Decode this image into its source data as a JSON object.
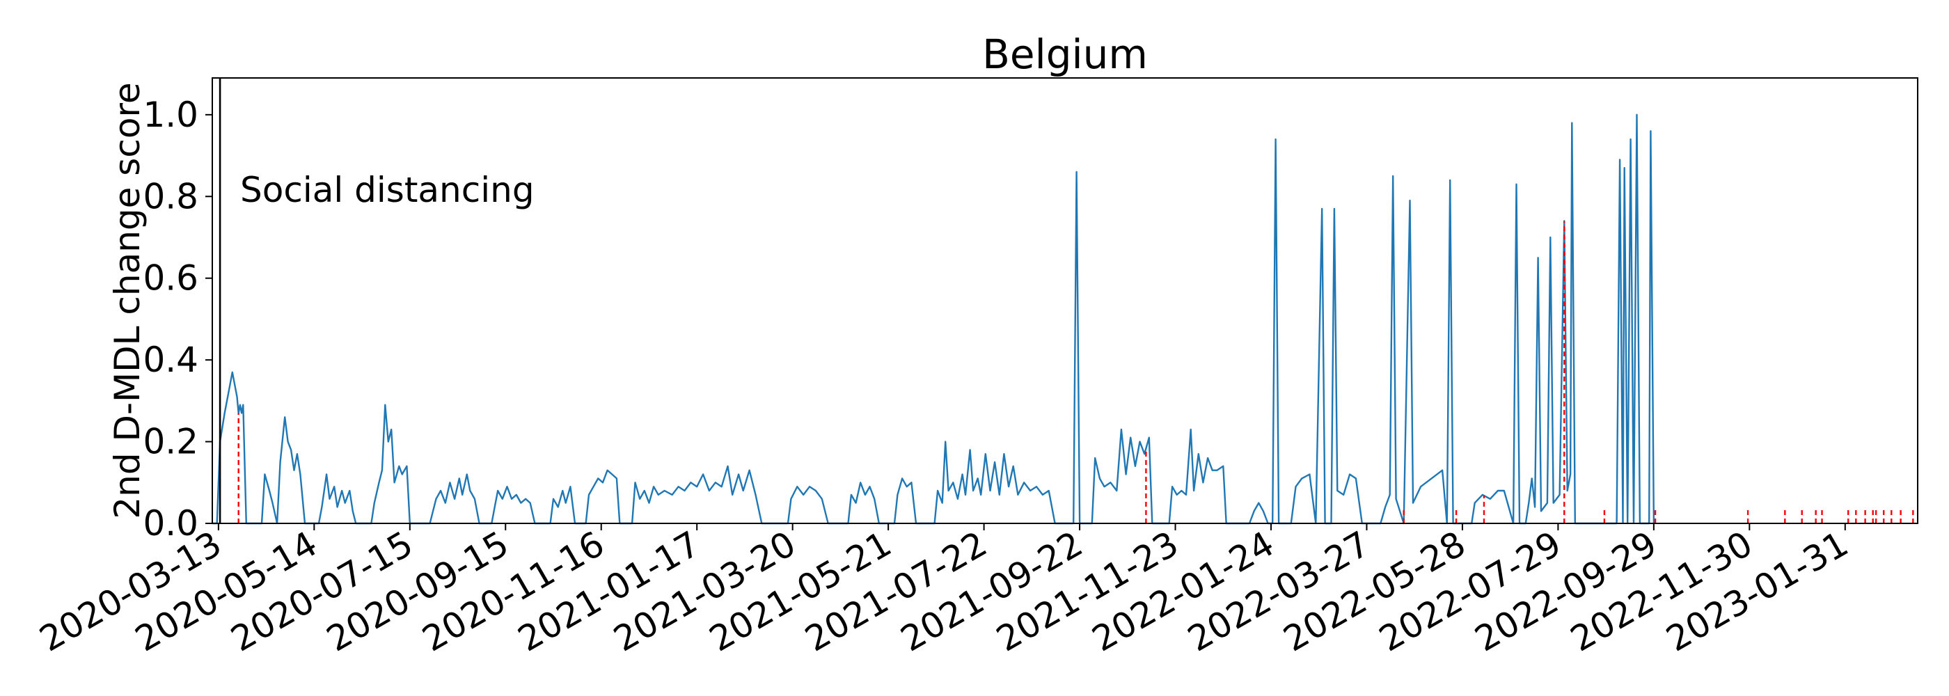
{
  "chart_data": {
    "type": "line",
    "title": "Belgium",
    "xlabel": "",
    "ylabel": "2nd D-MDL change score",
    "x_tick_labels": [
      "2020-03-13",
      "2020-05-14",
      "2020-07-15",
      "2020-09-15",
      "2020-11-16",
      "2021-01-17",
      "2021-03-20",
      "2021-05-21",
      "2021-07-22",
      "2021-09-22",
      "2021-11-23",
      "2022-01-24",
      "2022-03-27",
      "2022-05-28",
      "2022-07-29",
      "2022-09-29",
      "2022-11-30",
      "2023-01-31"
    ],
    "y_ticks": [
      0.0,
      0.2,
      0.4,
      0.6,
      0.8,
      1.0
    ],
    "y_tick_labels": [
      "0.0",
      "0.2",
      "0.4",
      "0.6",
      "0.8",
      "1.0"
    ],
    "xlim": [
      "2020-03-09",
      "2023-03-19"
    ],
    "ylim": [
      0.0,
      1.09
    ],
    "grid": false,
    "line_color": "#1f77b4",
    "event_line_color": "#000000",
    "change_point_color": "#ff0000",
    "event": {
      "date": "2020-03-14",
      "label": "Social distancing"
    },
    "change_points": [
      "2020-03-26",
      "2021-11-04",
      "2022-04-20",
      "2022-05-24",
      "2022-06-11",
      "2022-08-02",
      "2022-08-28",
      "2022-09-30",
      "2022-11-29",
      "2022-12-23",
      "2023-01-03",
      "2023-01-12",
      "2023-01-16",
      "2023-02-02",
      "2023-02-07",
      "2023-02-13",
      "2023-02-18",
      "2023-02-20",
      "2023-02-25",
      "2023-03-02",
      "2023-03-08",
      "2023-03-16"
    ],
    "series": [
      {
        "values": [
          [
            "2020-03-09",
            0.0
          ],
          [
            "2020-03-12",
            0.0
          ],
          [
            "2020-03-14",
            0.2
          ],
          [
            "2020-03-17",
            0.27
          ],
          [
            "2020-03-20",
            0.33
          ],
          [
            "2020-03-22",
            0.37
          ],
          [
            "2020-03-25",
            0.31
          ],
          [
            "2020-03-26",
            0.27
          ],
          [
            "2020-03-27",
            0.29
          ],
          [
            "2020-03-28",
            0.27
          ],
          [
            "2020-03-29",
            0.29
          ],
          [
            "2020-03-31",
            0.0
          ],
          [
            "2020-04-10",
            0.0
          ],
          [
            "2020-04-12",
            0.12
          ],
          [
            "2020-04-15",
            0.08
          ],
          [
            "2020-04-17",
            0.05
          ],
          [
            "2020-04-20",
            0.0
          ],
          [
            "2020-04-22",
            0.15
          ],
          [
            "2020-04-25",
            0.26
          ],
          [
            "2020-04-27",
            0.2
          ],
          [
            "2020-04-29",
            0.18
          ],
          [
            "2020-05-01",
            0.13
          ],
          [
            "2020-05-03",
            0.17
          ],
          [
            "2020-05-05",
            0.12
          ],
          [
            "2020-05-08",
            0.0
          ],
          [
            "2020-05-17",
            0.0
          ],
          [
            "2020-05-19",
            0.04
          ],
          [
            "2020-05-22",
            0.12
          ],
          [
            "2020-05-24",
            0.06
          ],
          [
            "2020-05-27",
            0.09
          ],
          [
            "2020-05-29",
            0.04
          ],
          [
            "2020-06-01",
            0.08
          ],
          [
            "2020-06-03",
            0.05
          ],
          [
            "2020-06-06",
            0.08
          ],
          [
            "2020-06-08",
            0.03
          ],
          [
            "2020-06-10",
            0.0
          ],
          [
            "2020-06-20",
            0.0
          ],
          [
            "2020-06-22",
            0.05
          ],
          [
            "2020-06-25",
            0.1
          ],
          [
            "2020-06-27",
            0.13
          ],
          [
            "2020-06-29",
            0.29
          ],
          [
            "2020-07-01",
            0.2
          ],
          [
            "2020-07-03",
            0.23
          ],
          [
            "2020-07-05",
            0.1
          ],
          [
            "2020-07-08",
            0.14
          ],
          [
            "2020-07-10",
            0.12
          ],
          [
            "2020-07-13",
            0.14
          ],
          [
            "2020-07-15",
            0.0
          ],
          [
            "2020-07-28",
            0.0
          ],
          [
            "2020-08-01",
            0.06
          ],
          [
            "2020-08-04",
            0.08
          ],
          [
            "2020-08-07",
            0.05
          ],
          [
            "2020-08-10",
            0.1
          ],
          [
            "2020-08-13",
            0.06
          ],
          [
            "2020-08-16",
            0.11
          ],
          [
            "2020-08-18",
            0.07
          ],
          [
            "2020-08-21",
            0.12
          ],
          [
            "2020-08-23",
            0.08
          ],
          [
            "2020-08-26",
            0.06
          ],
          [
            "2020-08-29",
            0.0
          ],
          [
            "2020-09-06",
            0.0
          ],
          [
            "2020-09-08",
            0.04
          ],
          [
            "2020-09-10",
            0.08
          ],
          [
            "2020-09-13",
            0.06
          ],
          [
            "2020-09-16",
            0.09
          ],
          [
            "2020-09-19",
            0.06
          ],
          [
            "2020-09-22",
            0.07
          ],
          [
            "2020-09-25",
            0.05
          ],
          [
            "2020-09-28",
            0.06
          ],
          [
            "2020-10-01",
            0.05
          ],
          [
            "2020-10-04",
            0.0
          ],
          [
            "2020-10-14",
            0.0
          ],
          [
            "2020-10-16",
            0.06
          ],
          [
            "2020-10-19",
            0.04
          ],
          [
            "2020-10-22",
            0.08
          ],
          [
            "2020-10-24",
            0.05
          ],
          [
            "2020-10-27",
            0.09
          ],
          [
            "2020-10-30",
            0.0
          ],
          [
            "2020-11-06",
            0.0
          ],
          [
            "2020-11-08",
            0.07
          ],
          [
            "2020-11-11",
            0.09
          ],
          [
            "2020-11-14",
            0.11
          ],
          [
            "2020-11-17",
            0.1
          ],
          [
            "2020-11-20",
            0.13
          ],
          [
            "2020-11-23",
            0.12
          ],
          [
            "2020-11-26",
            0.11
          ],
          [
            "2020-11-28",
            0.0
          ],
          [
            "2020-12-06",
            0.0
          ],
          [
            "2020-12-08",
            0.1
          ],
          [
            "2020-12-11",
            0.06
          ],
          [
            "2020-12-14",
            0.08
          ],
          [
            "2020-12-17",
            0.05
          ],
          [
            "2020-12-20",
            0.09
          ],
          [
            "2020-12-23",
            0.07
          ],
          [
            "2020-12-27",
            0.08
          ],
          [
            "2021-01-01",
            0.07
          ],
          [
            "2021-01-05",
            0.09
          ],
          [
            "2021-01-09",
            0.08
          ],
          [
            "2021-01-13",
            0.1
          ],
          [
            "2021-01-17",
            0.09
          ],
          [
            "2021-01-21",
            0.12
          ],
          [
            "2021-01-25",
            0.08
          ],
          [
            "2021-01-29",
            0.1
          ],
          [
            "2021-02-02",
            0.09
          ],
          [
            "2021-02-06",
            0.14
          ],
          [
            "2021-02-09",
            0.07
          ],
          [
            "2021-02-13",
            0.12
          ],
          [
            "2021-02-16",
            0.08
          ],
          [
            "2021-02-20",
            0.13
          ],
          [
            "2021-02-24",
            0.07
          ],
          [
            "2021-02-28",
            0.0
          ],
          [
            "2021-03-17",
            0.0
          ],
          [
            "2021-03-19",
            0.06
          ],
          [
            "2021-03-23",
            0.09
          ],
          [
            "2021-03-27",
            0.07
          ],
          [
            "2021-03-31",
            0.09
          ],
          [
            "2021-04-04",
            0.08
          ],
          [
            "2021-04-08",
            0.06
          ],
          [
            "2021-04-12",
            0.0
          ],
          [
            "2021-04-25",
            0.0
          ],
          [
            "2021-04-27",
            0.07
          ],
          [
            "2021-04-30",
            0.05
          ],
          [
            "2021-05-03",
            0.1
          ],
          [
            "2021-05-06",
            0.07
          ],
          [
            "2021-05-09",
            0.09
          ],
          [
            "2021-05-12",
            0.06
          ],
          [
            "2021-05-15",
            0.0
          ],
          [
            "2021-05-25",
            0.0
          ],
          [
            "2021-05-27",
            0.07
          ],
          [
            "2021-05-30",
            0.11
          ],
          [
            "2021-06-02",
            0.09
          ],
          [
            "2021-06-05",
            0.1
          ],
          [
            "2021-06-08",
            0.0
          ],
          [
            "2021-06-20",
            0.0
          ],
          [
            "2021-06-22",
            0.08
          ],
          [
            "2021-06-25",
            0.05
          ],
          [
            "2021-06-27",
            0.2
          ],
          [
            "2021-06-29",
            0.08
          ],
          [
            "2021-07-02",
            0.1
          ],
          [
            "2021-07-05",
            0.06
          ],
          [
            "2021-07-08",
            0.12
          ],
          [
            "2021-07-10",
            0.07
          ],
          [
            "2021-07-13",
            0.18
          ],
          [
            "2021-07-15",
            0.08
          ],
          [
            "2021-07-18",
            0.11
          ],
          [
            "2021-07-20",
            0.07
          ],
          [
            "2021-07-23",
            0.17
          ],
          [
            "2021-07-26",
            0.08
          ],
          [
            "2021-07-29",
            0.15
          ],
          [
            "2021-08-01",
            0.07
          ],
          [
            "2021-08-04",
            0.17
          ],
          [
            "2021-08-07",
            0.09
          ],
          [
            "2021-08-10",
            0.14
          ],
          [
            "2021-08-13",
            0.07
          ],
          [
            "2021-08-17",
            0.1
          ],
          [
            "2021-08-21",
            0.08
          ],
          [
            "2021-08-25",
            0.09
          ],
          [
            "2021-08-29",
            0.07
          ],
          [
            "2021-09-02",
            0.08
          ],
          [
            "2021-09-06",
            0.0
          ],
          [
            "2021-09-18",
            0.0
          ],
          [
            "2021-09-20",
            0.86
          ],
          [
            "2021-09-22",
            0.0
          ],
          [
            "2021-09-30",
            0.0
          ],
          [
            "2021-10-02",
            0.16
          ],
          [
            "2021-10-05",
            0.11
          ],
          [
            "2021-10-08",
            0.09
          ],
          [
            "2021-10-12",
            0.1
          ],
          [
            "2021-10-16",
            0.08
          ],
          [
            "2021-10-19",
            0.23
          ],
          [
            "2021-10-22",
            0.12
          ],
          [
            "2021-10-25",
            0.21
          ],
          [
            "2021-10-28",
            0.14
          ],
          [
            "2021-10-31",
            0.2
          ],
          [
            "2021-11-03",
            0.17
          ],
          [
            "2021-11-06",
            0.21
          ],
          [
            "2021-11-08",
            0.0
          ],
          [
            "2021-11-19",
            0.0
          ],
          [
            "2021-11-21",
            0.09
          ],
          [
            "2021-11-24",
            0.07
          ],
          [
            "2021-11-27",
            0.08
          ],
          [
            "2021-11-30",
            0.07
          ],
          [
            "2021-12-03",
            0.23
          ],
          [
            "2021-12-05",
            0.08
          ],
          [
            "2021-12-08",
            0.17
          ],
          [
            "2021-12-11",
            0.1
          ],
          [
            "2021-12-14",
            0.16
          ],
          [
            "2021-12-17",
            0.13
          ],
          [
            "2021-12-20",
            0.13
          ],
          [
            "2021-12-24",
            0.14
          ],
          [
            "2021-12-26",
            0.0
          ],
          [
            "2022-01-10",
            0.0
          ],
          [
            "2022-01-13",
            0.03
          ],
          [
            "2022-01-16",
            0.05
          ],
          [
            "2022-01-19",
            0.03
          ],
          [
            "2022-01-22",
            0.0
          ],
          [
            "2022-01-25",
            0.0
          ],
          [
            "2022-01-27",
            0.94
          ],
          [
            "2022-01-29",
            0.0
          ],
          [
            "2022-02-06",
            0.0
          ],
          [
            "2022-02-09",
            0.09
          ],
          [
            "2022-02-13",
            0.11
          ],
          [
            "2022-02-18",
            0.12
          ],
          [
            "2022-02-22",
            0.0
          ],
          [
            "2022-02-26",
            0.77
          ],
          [
            "2022-02-28",
            0.0
          ],
          [
            "2022-03-04",
            0.0
          ],
          [
            "2022-03-06",
            0.77
          ],
          [
            "2022-03-08",
            0.08
          ],
          [
            "2022-03-12",
            0.07
          ],
          [
            "2022-03-16",
            0.12
          ],
          [
            "2022-03-20",
            0.11
          ],
          [
            "2022-03-24",
            0.0
          ],
          [
            "2022-04-05",
            0.0
          ],
          [
            "2022-04-08",
            0.04
          ],
          [
            "2022-04-11",
            0.07
          ],
          [
            "2022-04-13",
            0.85
          ],
          [
            "2022-04-15",
            0.06
          ],
          [
            "2022-04-20",
            0.0
          ],
          [
            "2022-04-24",
            0.79
          ],
          [
            "2022-04-26",
            0.05
          ],
          [
            "2022-05-01",
            0.09
          ],
          [
            "2022-05-08",
            0.11
          ],
          [
            "2022-05-15",
            0.13
          ],
          [
            "2022-05-18",
            0.0
          ],
          [
            "2022-05-20",
            0.84
          ],
          [
            "2022-05-22",
            0.0
          ],
          [
            "2022-06-03",
            0.0
          ],
          [
            "2022-06-05",
            0.05
          ],
          [
            "2022-06-10",
            0.07
          ],
          [
            "2022-06-15",
            0.06
          ],
          [
            "2022-06-20",
            0.08
          ],
          [
            "2022-06-24",
            0.08
          ],
          [
            "2022-06-30",
            0.0
          ],
          [
            "2022-07-02",
            0.83
          ],
          [
            "2022-07-04",
            0.0
          ],
          [
            "2022-07-08",
            0.0
          ],
          [
            "2022-07-10",
            0.05
          ],
          [
            "2022-07-12",
            0.11
          ],
          [
            "2022-07-14",
            0.04
          ],
          [
            "2022-07-16",
            0.65
          ],
          [
            "2022-07-18",
            0.03
          ],
          [
            "2022-07-22",
            0.05
          ],
          [
            "2022-07-24",
            0.7
          ],
          [
            "2022-07-26",
            0.05
          ],
          [
            "2022-07-30",
            0.07
          ],
          [
            "2022-08-02",
            0.74
          ],
          [
            "2022-08-04",
            0.08
          ],
          [
            "2022-08-06",
            0.12
          ],
          [
            "2022-08-07",
            0.98
          ],
          [
            "2022-08-09",
            0.0
          ],
          [
            "2022-09-05",
            0.0
          ],
          [
            "2022-09-07",
            0.89
          ],
          [
            "2022-09-09",
            0.0
          ],
          [
            "2022-09-10",
            0.87
          ],
          [
            "2022-09-12",
            0.0
          ],
          [
            "2022-09-14",
            0.94
          ],
          [
            "2022-09-16",
            0.0
          ],
          [
            "2022-09-18",
            1.0
          ],
          [
            "2022-09-20",
            0.0
          ],
          [
            "2022-09-26",
            0.0
          ],
          [
            "2022-09-27",
            0.96
          ],
          [
            "2022-09-29",
            0.0
          ]
        ]
      }
    ]
  }
}
